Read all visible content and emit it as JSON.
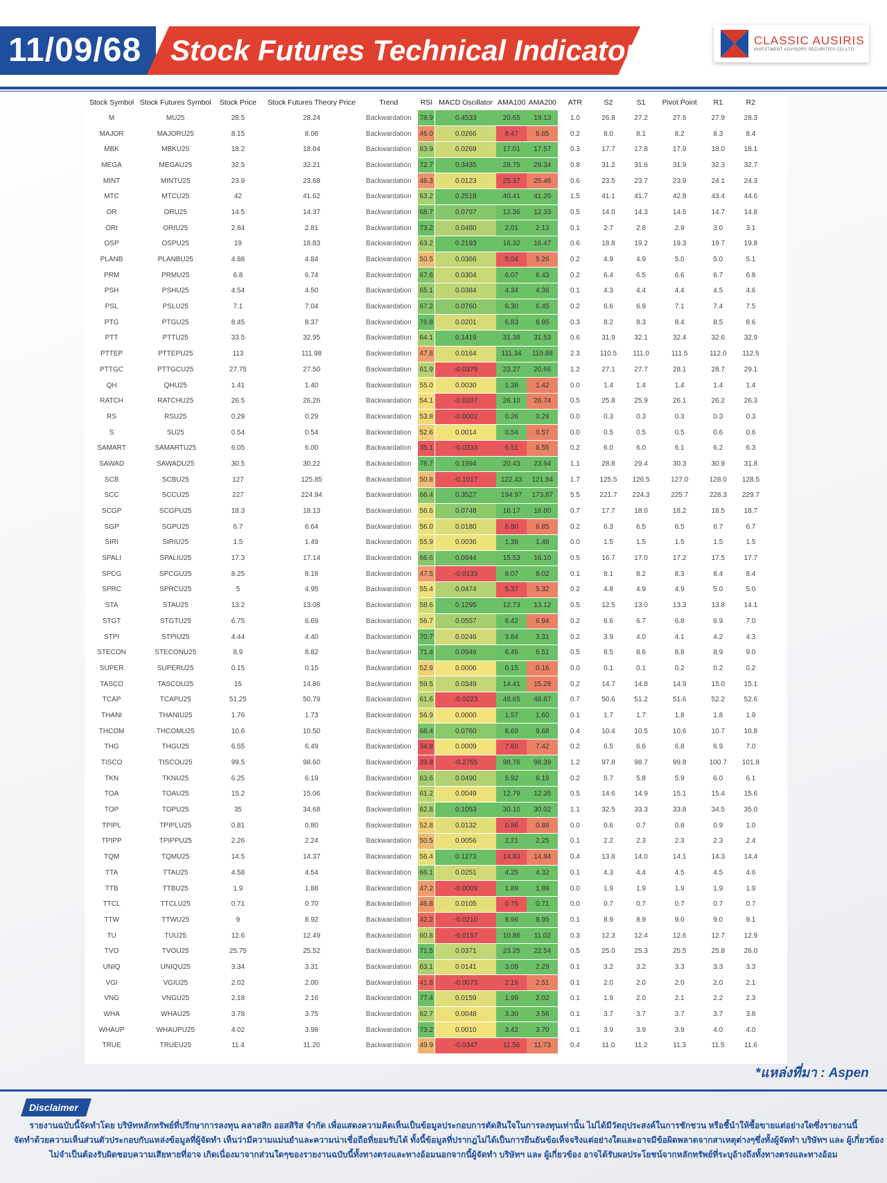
{
  "header": {
    "date": "11/09/68",
    "title": "Stock Futures Technical Indicator",
    "logo_name": "CLASSIC AUSIRIS",
    "logo_sub": "INVESTMENT ADVISORY SECURITIES CO.,LTD."
  },
  "colors": {
    "brand_blue": "#1f4e9c",
    "brand_red": "#e0402f",
    "heat_green": "#6cc067",
    "heat_yellow": "#f3e37c",
    "heat_red": "#e8585b"
  },
  "columns": [
    "Stock Symbol",
    "Stock Futures Symbol",
    "Stock Price",
    "Stock Futures Theory Price",
    "Trend",
    "RSI",
    "MACD Oscillator",
    "AMA100",
    "AMA200",
    "ATR",
    "S2",
    "S1",
    "Pivot Point",
    "R1",
    "R2"
  ],
  "rows": [
    [
      "M",
      "MU25",
      "28.5",
      "28.24",
      "Backwardation",
      "78.9",
      "0.4533",
      "20.65",
      "19.13",
      "1.0",
      "26.8",
      "27.2",
      "27.6",
      "27.9",
      "28.3"
    ],
    [
      "MAJOR",
      "MAJORU25",
      "8.15",
      "8.08",
      "Backwardation",
      "46.0",
      "0.0266",
      "8.47",
      "8.65",
      "0.2",
      "8.0",
      "8.1",
      "8.2",
      "8.3",
      "8.4"
    ],
    [
      "MBK",
      "MBKU25",
      "18.2",
      "18.04",
      "Backwardation",
      "63.9",
      "0.0269",
      "17.01",
      "17.57",
      "0.3",
      "17.7",
      "17.8",
      "17.9",
      "18.0",
      "18.1"
    ],
    [
      "MEGA",
      "MEGAU25",
      "32.5",
      "32.21",
      "Backwardation",
      "72.7",
      "0.3435",
      "28.75",
      "29.34",
      "0.8",
      "31.2",
      "31.6",
      "31.9",
      "32.3",
      "32.7"
    ],
    [
      "MINT",
      "MINTU25",
      "23.9",
      "23.68",
      "Backwardation",
      "46.3",
      "0.0123",
      "25.37",
      "25.46",
      "0.6",
      "23.5",
      "23.7",
      "23.9",
      "24.1",
      "24.3"
    ],
    [
      "MTC",
      "MTCU25",
      "42",
      "41.62",
      "Backwardation",
      "63.2",
      "0.2518",
      "40.41",
      "41.26",
      "1.5",
      "41.1",
      "41.7",
      "42.8",
      "43.4",
      "44.6"
    ],
    [
      "OR",
      "ORU25",
      "14.5",
      "14.37",
      "Backwardation",
      "68.7",
      "0.0797",
      "12.36",
      "12.33",
      "0.5",
      "14.0",
      "14.3",
      "14.5",
      "14.7",
      "14.8"
    ],
    [
      "ORI",
      "ORIU25",
      "2.84",
      "2.81",
      "Backwardation",
      "73.2",
      "0.0480",
      "2.01",
      "2.13",
      "0.1",
      "2.7",
      "2.8",
      "2.9",
      "3.0",
      "3.1"
    ],
    [
      "OSP",
      "OSPU25",
      "19",
      "18.83",
      "Backwardation",
      "63.2",
      "0.2193",
      "16.32",
      "16.47",
      "0.6",
      "18.8",
      "19.2",
      "19.3",
      "19.7",
      "19.8"
    ],
    [
      "PLANB",
      "PLANBU25",
      "4.88",
      "4.84",
      "Backwardation",
      "50.5",
      "0.0366",
      "5.04",
      "5.26",
      "0.2",
      "4.9",
      "4.9",
      "5.0",
      "5.0",
      "5.1"
    ],
    [
      "PRM",
      "PRMU25",
      "6.8",
      "6.74",
      "Backwardation",
      "67.6",
      "0.0304",
      "6.07",
      "6.43",
      "0.2",
      "6.4",
      "6.5",
      "6.6",
      "6.7",
      "6.8"
    ],
    [
      "PSH",
      "PSHU25",
      "4.54",
      "4.50",
      "Backwardation",
      "65.1",
      "0.0384",
      "4.34",
      "4.36",
      "0.1",
      "4.3",
      "4.4",
      "4.4",
      "4.5",
      "4.6"
    ],
    [
      "PSL",
      "PSLU25",
      "7.1",
      "7.04",
      "Backwardation",
      "67.2",
      "0.0760",
      "6.30",
      "6.45",
      "0.2",
      "6.6",
      "6.9",
      "7.1",
      "7.4",
      "7.5"
    ],
    [
      "PTG",
      "PTGU25",
      "8.45",
      "8.37",
      "Backwardation",
      "76.8",
      "0.0201",
      "6.83",
      "6.95",
      "0.3",
      "8.2",
      "8.3",
      "8.4",
      "8.5",
      "8.6"
    ],
    [
      "PTT",
      "PTTU25",
      "33.5",
      "32.95",
      "Backwardation",
      "64.1",
      "0.1419",
      "31.38",
      "31.53",
      "0.6",
      "31.9",
      "32.1",
      "32.4",
      "32.6",
      "32.9"
    ],
    [
      "PTTEP",
      "PTTEPU25",
      "113",
      "111.98",
      "Backwardation",
      "47.8",
      "0.0164",
      "111.34",
      "110.88",
      "2.3",
      "110.5",
      "111.0",
      "111.5",
      "112.0",
      "112.5"
    ],
    [
      "PTTGC",
      "PTTGCU25",
      "27.75",
      "27.50",
      "Backwardation",
      "61.9",
      "-0.0379",
      "23.27",
      "20.66",
      "1.2",
      "27.1",
      "27.7",
      "28.1",
      "28.7",
      "29.1"
    ],
    [
      "QH",
      "QHU25",
      "1.41",
      "1.40",
      "Backwardation",
      "55.0",
      "0.0030",
      "1.38",
      "1.42",
      "0.0",
      "1.4",
      "1.4",
      "1.4",
      "1.4",
      "1.4"
    ],
    [
      "RATCH",
      "RATCHU25",
      "26.5",
      "26.26",
      "Backwardation",
      "54.1",
      "-0.0207",
      "26.10",
      "26.74",
      "0.5",
      "25.8",
      "25.9",
      "26.1",
      "26.2",
      "26.3"
    ],
    [
      "RS",
      "RSU25",
      "0.29",
      "0.29",
      "Backwardation",
      "53.8",
      "-0.0002",
      "0.26",
      "0.29",
      "0.0",
      "0.3",
      "0.3",
      "0.3",
      "0.3",
      "0.3"
    ],
    [
      "S",
      "SU25",
      "0.54",
      "0.54",
      "Backwardation",
      "52.6",
      "0.0014",
      "0.54",
      "0.57",
      "0.0",
      "0.5",
      "0.5",
      "0.5",
      "0.6",
      "0.6"
    ],
    [
      "SAMART",
      "SAMARTU25",
      "6.05",
      "6.00",
      "Backwardation",
      "35.1",
      "-0.0333",
      "6.51",
      "6.55",
      "0.2",
      "6.0",
      "6.0",
      "6.1",
      "6.2",
      "6.3"
    ],
    [
      "SAWAD",
      "SAWADU25",
      "30.5",
      "30.22",
      "Backwardation",
      "78.7",
      "0.1994",
      "20.43",
      "23.64",
      "1.1",
      "28.8",
      "29.4",
      "30.3",
      "30.9",
      "31.8"
    ],
    [
      "SCB",
      "SCBU25",
      "127",
      "125.85",
      "Backwardation",
      "50.8",
      "-0.1017",
      "122.43",
      "121.84",
      "1.7",
      "125.5",
      "126.5",
      "127.0",
      "128.0",
      "128.5"
    ],
    [
      "SCC",
      "SCCU25",
      "227",
      "224.94",
      "Backwardation",
      "66.4",
      "0.3527",
      "194.97",
      "173.87",
      "5.5",
      "221.7",
      "224.3",
      "225.7",
      "228.3",
      "229.7"
    ],
    [
      "SCGP",
      "SCGPU25",
      "18.3",
      "18.13",
      "Backwardation",
      "56.6",
      "0.0748",
      "16.17",
      "16.80",
      "0.7",
      "17.7",
      "18.0",
      "18.2",
      "18.5",
      "18.7"
    ],
    [
      "SGP",
      "SGPU25",
      "6.7",
      "6.64",
      "Backwardation",
      "56.0",
      "0.0180",
      "6.80",
      "6.85",
      "0.2",
      "6.3",
      "6.5",
      "6.5",
      "6.7",
      "6.7"
    ],
    [
      "SIRI",
      "SIRIU25",
      "1.5",
      "1.49",
      "Backwardation",
      "55.9",
      "0.0036",
      "1.38",
      "1.48",
      "0.0",
      "1.5",
      "1.5",
      "1.5",
      "1.5",
      "1.5"
    ],
    [
      "SPALI",
      "SPALIU25",
      "17.3",
      "17.14",
      "Backwardation",
      "66.6",
      "0.0944",
      "15.53",
      "16.10",
      "0.5",
      "16.7",
      "17.0",
      "17.2",
      "17.5",
      "17.7"
    ],
    [
      "SPCG",
      "SPCGU25",
      "8.25",
      "8.18",
      "Backwardation",
      "47.5",
      "-0.0133",
      "8.07",
      "8.02",
      "0.1",
      "8.1",
      "8.2",
      "8.3",
      "8.4",
      "8.4"
    ],
    [
      "SPRC",
      "SPRCU25",
      "5",
      "4.95",
      "Backwardation",
      "55.4",
      "0.0474",
      "5.37",
      "5.32",
      "0.2",
      "4.8",
      "4.9",
      "4.9",
      "5.0",
      "5.0"
    ],
    [
      "STA",
      "STAU25",
      "13.2",
      "13.08",
      "Backwardation",
      "58.6",
      "0.1295",
      "12.73",
      "13.12",
      "0.5",
      "12.5",
      "13.0",
      "13.3",
      "13.8",
      "14.1"
    ],
    [
      "STGT",
      "STGTU25",
      "6.75",
      "6.69",
      "Backwardation",
      "56.7",
      "0.0557",
      "6.42",
      "6.94",
      "0.2",
      "6.6",
      "6.7",
      "6.8",
      "6.9",
      "7.0"
    ],
    [
      "STPI",
      "STPIU25",
      "4.44",
      "4.40",
      "Backwardation",
      "70.7",
      "0.0246",
      "3.84",
      "3.31",
      "0.2",
      "3.9",
      "4.0",
      "4.1",
      "4.2",
      "4.3"
    ],
    [
      "STECON",
      "STECONU25",
      "8.9",
      "8.82",
      "Backwardation",
      "71.4",
      "0.0946",
      "6.46",
      "6.51",
      "0.5",
      "8.5",
      "8.6",
      "8.8",
      "8.9",
      "9.0"
    ],
    [
      "SUPER",
      "SUPERU25",
      "0.15",
      "0.15",
      "Backwardation",
      "52.9",
      "0.0006",
      "0.15",
      "0.16",
      "0.0",
      "0.1",
      "0.1",
      "0.2",
      "0.2",
      "0.2"
    ],
    [
      "TASCO",
      "TASCOU25",
      "15",
      "14.86",
      "Backwardation",
      "59.5",
      "0.0349",
      "14.41",
      "15.28",
      "0.2",
      "14.7",
      "14.8",
      "14.9",
      "15.0",
      "15.1"
    ],
    [
      "TCAP",
      "TCAPU25",
      "51.25",
      "50.79",
      "Backwardation",
      "61.6",
      "-0.0223",
      "48.65",
      "48.87",
      "0.7",
      "50.6",
      "51.2",
      "51.6",
      "52.2",
      "52.6"
    ],
    [
      "THANI",
      "THANIU25",
      "1.76",
      "1.73",
      "Backwardation",
      "56.9",
      "0.0000",
      "1.57",
      "1.60",
      "0.1",
      "1.7",
      "1.7",
      "1.8",
      "1.8",
      "1.9"
    ],
    [
      "THCOM",
      "THCOMU25",
      "10.6",
      "10.50",
      "Backwardation",
      "68.4",
      "0.0760",
      "8.69",
      "9.68",
      "0.4",
      "10.4",
      "10.5",
      "10.6",
      "10.7",
      "10.8"
    ],
    [
      "THG",
      "THGU25",
      "6.55",
      "6.49",
      "Backwardation",
      "34.8",
      "0.0009",
      "7.60",
      "7.42",
      "0.2",
      "6.5",
      "6.6",
      "6.8",
      "6.9",
      "7.0"
    ],
    [
      "TISCO",
      "TISCOU25",
      "99.5",
      "98.60",
      "Backwardation",
      "39.8",
      "-0.2755",
      "98.76",
      "98.39",
      "1.2",
      "97.8",
      "98.7",
      "99.8",
      "100.7",
      "101.8"
    ],
    [
      "TKN",
      "TKNU25",
      "6.25",
      "6.19",
      "Backwardation",
      "63.6",
      "0.0490",
      "5.92",
      "6.19",
      "0.2",
      "5.7",
      "5.8",
      "5.9",
      "6.0",
      "6.1"
    ],
    [
      "TOA",
      "TOAU25",
      "15.2",
      "15.06",
      "Backwardation",
      "61.2",
      "0.0049",
      "12.79",
      "12.35",
      "0.5",
      "14.6",
      "14.9",
      "15.1",
      "15.4",
      "15.6"
    ],
    [
      "TOP",
      "TOPU25",
      "35",
      "34.68",
      "Backwardation",
      "62.8",
      "0.1053",
      "30.10",
      "30.02",
      "1.1",
      "32.5",
      "33.3",
      "33.8",
      "34.5",
      "35.0"
    ],
    [
      "TPIPL",
      "TPIPLU25",
      "0.81",
      "0.80",
      "Backwardation",
      "52.8",
      "0.0132",
      "0.86",
      "0.86",
      "0.0",
      "0.6",
      "0.7",
      "0.8",
      "0.9",
      "1.0"
    ],
    [
      "TPIPP",
      "TPIPPU25",
      "2.26",
      "2.24",
      "Backwardation",
      "50.5",
      "0.0056",
      "2.21",
      "2.25",
      "0.1",
      "2.2",
      "2.3",
      "2.3",
      "2.3",
      "2.4"
    ],
    [
      "TQM",
      "TQMU25",
      "14.5",
      "14.37",
      "Backwardation",
      "56.4",
      "0.1273",
      "14.83",
      "14.84",
      "0.4",
      "13.8",
      "14.0",
      "14.1",
      "14.3",
      "14.4"
    ],
    [
      "TTA",
      "TTAU25",
      "4.58",
      "4.54",
      "Backwardation",
      "66.1",
      "0.0251",
      "4.25",
      "4.32",
      "0.1",
      "4.3",
      "4.4",
      "4.5",
      "4.5",
      "4.6"
    ],
    [
      "TTB",
      "TTBU25",
      "1.9",
      "1.88",
      "Backwardation",
      "47.2",
      "-0.0009",
      "1.89",
      "1.89",
      "0.0",
      "1.9",
      "1.9",
      "1.9",
      "1.9",
      "1.9"
    ],
    [
      "TTCL",
      "TTCLU25",
      "0.71",
      "0.70",
      "Backwardation",
      "46.8",
      "0.0105",
      "0.75",
      "0.71",
      "0.0",
      "0.7",
      "0.7",
      "0.7",
      "0.7",
      "0.7"
    ],
    [
      "TTW",
      "TTWU25",
      "9",
      "8.92",
      "Backwardation",
      "42.2",
      "-0.0210",
      "8.96",
      "8.95",
      "0.1",
      "8.9",
      "8.9",
      "9.0",
      "9.0",
      "9.1"
    ],
    [
      "TU",
      "TUU25",
      "12.6",
      "12.49",
      "Backwardation",
      "60.8",
      "-0.0157",
      "10.86",
      "11.02",
      "0.3",
      "12.3",
      "12.4",
      "12.6",
      "12.7",
      "12.9"
    ],
    [
      "TVO",
      "TVOU25",
      "25.75",
      "25.52",
      "Backwardation",
      "71.5",
      "0.0371",
      "23.25",
      "22.54",
      "0.5",
      "25.0",
      "25.3",
      "25.5",
      "25.8",
      "26.0"
    ],
    [
      "UNIQ",
      "UNIQU25",
      "3.34",
      "3.31",
      "Backwardation",
      "63.1",
      "0.0141",
      "3.09",
      "2.29",
      "0.1",
      "3.2",
      "3.2",
      "3.3",
      "3.3",
      "3.3"
    ],
    [
      "VGI",
      "VGIU25",
      "2.02",
      "2.00",
      "Backwardation",
      "41.8",
      "-0.0073",
      "2.19",
      "2.51",
      "0.1",
      "2.0",
      "2.0",
      "2.0",
      "2.0",
      "2.1"
    ],
    [
      "VNG",
      "VNGU25",
      "2.18",
      "2.16",
      "Backwardation",
      "77.4",
      "0.0159",
      "1.99",
      "2.02",
      "0.1",
      "1.9",
      "2.0",
      "2.1",
      "2.2",
      "2.3"
    ],
    [
      "WHA",
      "WHAU25",
      "3.78",
      "3.75",
      "Backwardation",
      "62.7",
      "0.0048",
      "3.30",
      "3.56",
      "0.1",
      "3.7",
      "3.7",
      "3.7",
      "3.7",
      "3.8"
    ],
    [
      "WHAUP",
      "WHAUPU25",
      "4.02",
      "3.98",
      "Backwardation",
      "73.2",
      "0.0010",
      "3.42",
      "3.70",
      "0.1",
      "3.9",
      "3.9",
      "3.9",
      "4.0",
      "4.0"
    ],
    [
      "TRUE",
      "TRUEU25",
      "11.4",
      "11.20",
      "Backwardation",
      "49.9",
      "-0.0347",
      "11.56",
      "11.73",
      "0.4",
      "11.0",
      "11.2",
      "11.3",
      "11.5",
      "11.6"
    ]
  ],
  "footer": {
    "source": "*แหล่งที่มา : Aspen",
    "disclaimer_label": "Disclaimer",
    "disclaimer_lines": [
      "รายงานฉบับนี้จัดทำโดย บริษัทหลักทรัพย์ที่ปรึกษาการลงทุน คลาสสิก ออสสิริส จำกัด  เพื่อแสดงความคิดเห็นเป็นข้อมูลประกอบการตัดสินใจในการลงทุนเท่านั้น ไม่ได้มีวัตถุประสงค์ในการชักชวน หรือชี้นำให้ซื้อขายแต่อย่างใดซึ่งรายงานนี้",
      "จัดทำด้วยความเห็นส่วนตัวประกอบกับแหล่งข้อมูลที่ผู้จัดทำ เห็นว่ามีความแม่นยำและความน่าเชื่อถือที่ยอมรับได้ ทั้งนี้ข้อมูลที่ปรากฎไม่ได้เป็นการยืนยันข้อเท็จจริงแต่อย่างใดและอาจมีข้อผิดพลาดจากสาเหตุต่างๆซึ่งทั้งผู้จัดทำ  บริษัทฯ  และ  ผู้เกี่ยวข้อง",
      "ไม่จำเป็นต้องรับผิดชอบความเสียหายที่อาจ เกิดเนื่องมาจากส่วนใดๆของรายงานฉบับนี้ทั้งทางตรงและทางอ้อมนอกจากนี้ผู้จัดทำ บริษัทฯ และ ผู้เกี่ยวข้อง  อาจได้รับผลประโยชน์จากหลักทรัพย์ที่ระบุอ้างถึงทั้งทางตรงและทางอ้อม"
    ]
  }
}
